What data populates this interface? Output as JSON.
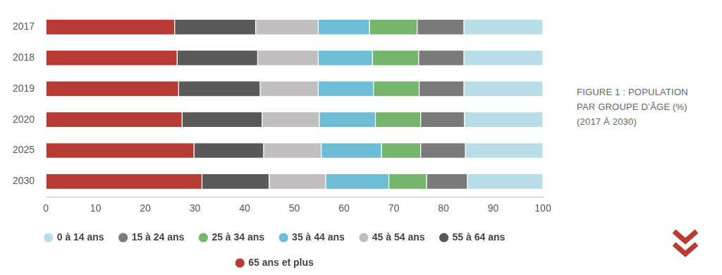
{
  "chart_data": {
    "type": "bar",
    "title": "FIGURE 1 : POPULATION PAR GROUPE D’ÂGE (%) (2017 À 2030)",
    "orientation": "horizontal",
    "stacked": true,
    "grid": false,
    "legend": "bottom",
    "categories": [
      "2017",
      "2018",
      "2019",
      "2020",
      "2025",
      "2030"
    ],
    "xlim": [
      0,
      100
    ],
    "xticks": [
      0,
      10,
      20,
      30,
      40,
      50,
      60,
      70,
      80,
      90,
      100
    ],
    "series": [
      {
        "name": "65 ans et plus",
        "color": "#b73b33",
        "values": [
          25.9,
          26.4,
          26.7,
          27.4,
          29.8,
          31.4
        ]
      },
      {
        "name": "55 à 64 ans",
        "color": "#595959",
        "values": [
          16.3,
          16.2,
          16.4,
          16.1,
          14.0,
          13.5
        ]
      },
      {
        "name": "45 à 54 ans",
        "color": "#c1bfbf",
        "values": [
          12.6,
          12.2,
          11.7,
          11.5,
          11.6,
          11.4
        ]
      },
      {
        "name": "35 à 44 ans",
        "color": "#6dbcd8",
        "values": [
          10.3,
          10.9,
          11.1,
          11.3,
          12.1,
          12.7
        ]
      },
      {
        "name": "25 à 34 ans",
        "color": "#74b66b",
        "values": [
          9.6,
          9.3,
          9.2,
          9.1,
          7.9,
          7.6
        ]
      },
      {
        "name": "15 à 24 ans",
        "color": "#7a7a7a",
        "values": [
          9.4,
          9.1,
          9.0,
          8.8,
          9.0,
          8.2
        ]
      },
      {
        "name": "0 à 14 ans",
        "color": "#b9dde6",
        "values": [
          15.9,
          15.9,
          15.9,
          15.8,
          15.6,
          15.2
        ]
      }
    ]
  }
}
